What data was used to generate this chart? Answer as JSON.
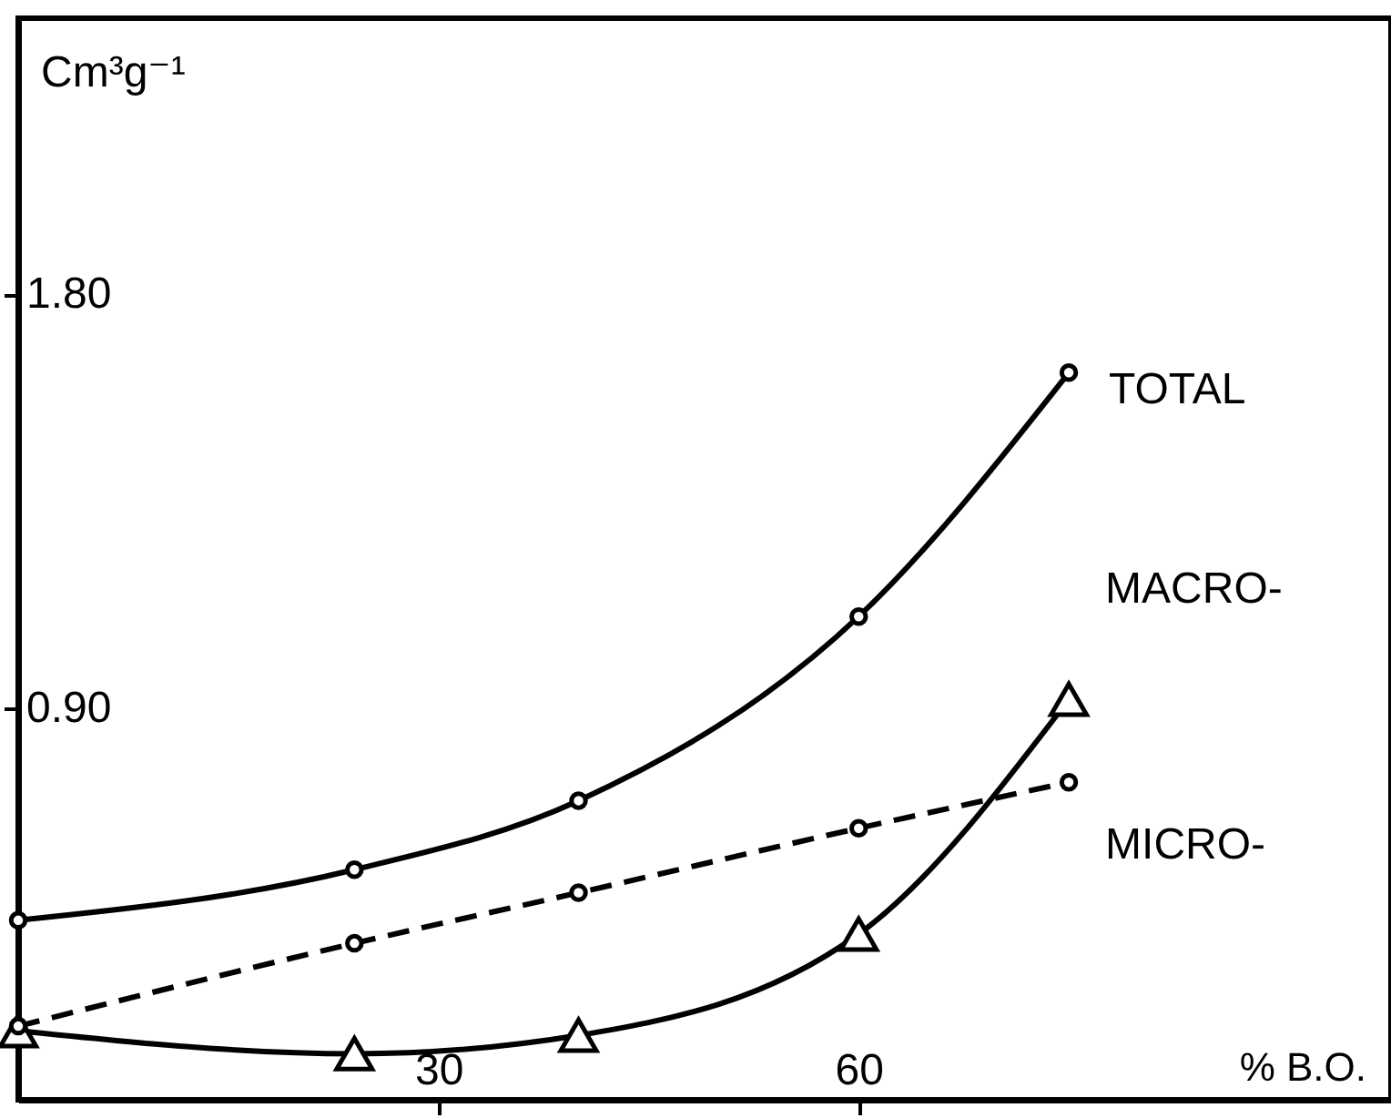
{
  "chart_data": {
    "type": "line",
    "xlabel": "% B.O.",
    "ylabel": "Cm³g⁻¹",
    "xlim": [
      0,
      98
    ],
    "xticks": [
      30,
      60
    ],
    "ylim": [
      0.05,
      2.4
    ],
    "yticks": [
      {
        "value": 0.9,
        "label": "0.90"
      },
      {
        "value": 1.8,
        "label": "1.80"
      }
    ],
    "grid": false,
    "legend": false,
    "series": [
      {
        "name": "TOTAL",
        "color": "#000000",
        "marker": "circle",
        "line_style": "solid",
        "x": [
          0,
          24,
          40,
          60,
          75
        ],
        "values": [
          0.44,
          0.55,
          0.7,
          1.1,
          1.63
        ]
      },
      {
        "name": "MACRO-",
        "color": "#000000",
        "marker": "triangle",
        "line_style": "solid",
        "x": [
          0,
          24,
          40,
          60,
          75
        ],
        "values": [
          0.2,
          0.15,
          0.19,
          0.41,
          0.92
        ]
      },
      {
        "name": "MICRO-",
        "color": "#000000",
        "marker": "circle",
        "line_style": "dashed",
        "x": [
          0,
          24,
          40,
          60,
          75
        ],
        "values": [
          0.21,
          0.39,
          0.5,
          0.64,
          0.74
        ]
      }
    ]
  }
}
